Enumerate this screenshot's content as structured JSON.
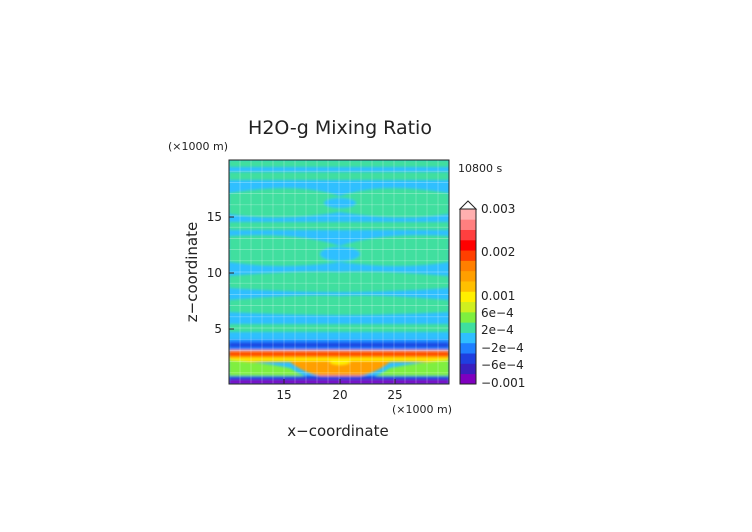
{
  "chart_data": {
    "type": "heatmap",
    "title": "H2O-g Mixing Ratio",
    "time_label": "10800 s",
    "xlabel": "x−coordinate",
    "ylabel": "z−coordinate",
    "x_unit": "(×1000 m)",
    "y_unit": "(×1000 m)",
    "xlim": [
      10,
      30
    ],
    "ylim": [
      0,
      20
    ],
    "x_ticks": [
      "15",
      "20",
      "25"
    ],
    "y_ticks": [
      "5",
      "10",
      "15"
    ],
    "grid": true,
    "colorbar": {
      "labels": [
        "0.003",
        "0.002",
        "0.001",
        "6e−4",
        "2e−4",
        "−2e−4",
        "−6e−4",
        "−0.001"
      ],
      "colors": [
        "#7f00bf",
        "#3a1fbf",
        "#1f3fdf",
        "#1f7fff",
        "#2fbfff",
        "#3fdf9f",
        "#7fef3f",
        "#cfef1f",
        "#ffef00",
        "#ffbf00",
        "#ff9f00",
        "#ff7f00",
        "#ff3f00",
        "#ff0000",
        "#ff3f3f",
        "#ff7f7f",
        "#ffafaf"
      ]
    }
  }
}
